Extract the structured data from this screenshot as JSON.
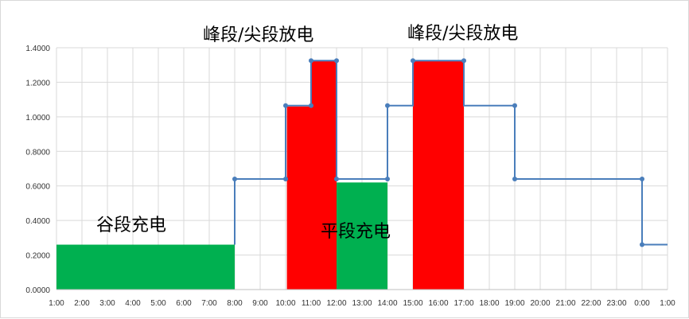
{
  "chart_data": {
    "type": "line",
    "x_categories": [
      "1:00",
      "2:00",
      "3:00",
      "4:00",
      "5:00",
      "6:00",
      "7:00",
      "8:00",
      "9:00",
      "10:00",
      "11:00",
      "12:00",
      "13:00",
      "14:00",
      "15:00",
      "16:00",
      "17:00",
      "18:00",
      "19:00",
      "20:00",
      "21:00",
      "22:00",
      "23:00",
      "0:00",
      "1:00"
    ],
    "y_ticks": [
      "0.0000",
      "0.2000",
      "0.4000",
      "0.6000",
      "0.8000",
      "1.0000",
      "1.2000",
      "1.4000"
    ],
    "ylim": [
      0,
      1.4
    ],
    "grid": true,
    "price_line": {
      "color": "#4a7ebb",
      "points": [
        [
          8,
          0.26
        ],
        [
          8,
          0.64
        ],
        [
          10,
          0.64
        ],
        [
          10,
          1.065
        ],
        [
          11,
          1.065
        ],
        [
          11,
          1.325
        ],
        [
          12,
          1.325
        ],
        [
          12,
          0.64
        ],
        [
          14,
          0.64
        ],
        [
          14,
          1.065
        ],
        [
          15,
          1.065
        ],
        [
          15,
          1.325
        ],
        [
          17,
          1.325
        ],
        [
          17,
          1.065
        ],
        [
          19,
          1.065
        ],
        [
          19,
          0.64
        ],
        [
          24,
          0.64
        ],
        [
          24,
          0.26
        ],
        [
          25,
          0.26
        ]
      ],
      "markers": [
        [
          8,
          0.64
        ],
        [
          10,
          0.64
        ],
        [
          10,
          1.065
        ],
        [
          11,
          1.065
        ],
        [
          11,
          1.325
        ],
        [
          12,
          1.325
        ],
        [
          12,
          0.64
        ],
        [
          14,
          0.64
        ],
        [
          14,
          1.065
        ],
        [
          15,
          1.325
        ],
        [
          17,
          1.325
        ],
        [
          19,
          1.065
        ],
        [
          19,
          0.64
        ],
        [
          24,
          0.64
        ],
        [
          24,
          0.26
        ]
      ]
    },
    "charge_areas": [
      {
        "x0": 1,
        "x1": 8,
        "value": 0.26,
        "color": "#00b050"
      },
      {
        "x0": 12,
        "x1": 14,
        "value": 0.62,
        "color": "#00b050"
      }
    ],
    "discharge_areas": [
      {
        "x0": 10.05,
        "x1": 11,
        "value": 1.06,
        "color": "#ff0000"
      },
      {
        "x0": 11,
        "x1": 12,
        "value": 1.325,
        "color": "#ff0000"
      },
      {
        "x0": 15,
        "x1": 17,
        "value": 1.325,
        "color": "#ff0000"
      }
    ],
    "annotations": {
      "valley_charge": "谷段充电",
      "flat_charge": "平段充电",
      "peak_discharge_1": "峰段/尖段放电",
      "peak_discharge_2": "峰段/尖段放电"
    }
  }
}
